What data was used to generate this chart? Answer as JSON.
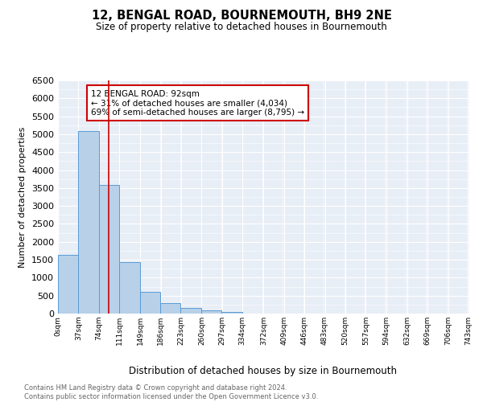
{
  "title": "12, BENGAL ROAD, BOURNEMOUTH, BH9 2NE",
  "subtitle": "Size of property relative to detached houses in Bournemouth",
  "xlabel": "Distribution of detached houses by size in Bournemouth",
  "ylabel": "Number of detached properties",
  "footnote1": "Contains HM Land Registry data © Crown copyright and database right 2024.",
  "footnote2": "Contains public sector information licensed under the Open Government Licence v3.0.",
  "bin_edges": [
    0,
    37,
    74,
    111,
    148,
    185,
    222,
    259,
    296,
    333,
    370,
    407,
    444,
    481,
    518,
    555,
    592,
    629,
    666,
    703,
    740
  ],
  "bar_heights": [
    1630,
    5080,
    3590,
    1430,
    615,
    300,
    150,
    80,
    50,
    0,
    0,
    0,
    0,
    0,
    0,
    0,
    0,
    0,
    0,
    0
  ],
  "bar_color": "#b8d0e8",
  "bar_edge_color": "#5b9bd5",
  "property_size": 92,
  "vline_color": "#cc0000",
  "ylim": [
    0,
    6500
  ],
  "xlim": [
    0,
    743
  ],
  "annotation_title": "12 BENGAL ROAD: 92sqm",
  "annotation_line1": "← 31% of detached houses are smaller (4,034)",
  "annotation_line2": "69% of semi-detached houses are larger (8,795) →",
  "annotation_box_color": "#cc0000",
  "xtick_labels": [
    "0sqm",
    "37sqm",
    "74sqm",
    "111sqm",
    "149sqm",
    "186sqm",
    "223sqm",
    "260sqm",
    "297sqm",
    "334sqm",
    "372sqm",
    "409sqm",
    "446sqm",
    "483sqm",
    "520sqm",
    "557sqm",
    "594sqm",
    "632sqm",
    "669sqm",
    "706sqm",
    "743sqm"
  ],
  "xtick_positions": [
    0,
    37,
    74,
    111,
    149,
    186,
    223,
    260,
    297,
    334,
    372,
    409,
    446,
    483,
    520,
    557,
    594,
    632,
    669,
    706,
    743
  ],
  "background_color": "#e8eef6",
  "grid_color": "#ffffff",
  "yticks": [
    0,
    500,
    1000,
    1500,
    2000,
    2500,
    3000,
    3500,
    4000,
    4500,
    5000,
    5500,
    6000,
    6500
  ]
}
